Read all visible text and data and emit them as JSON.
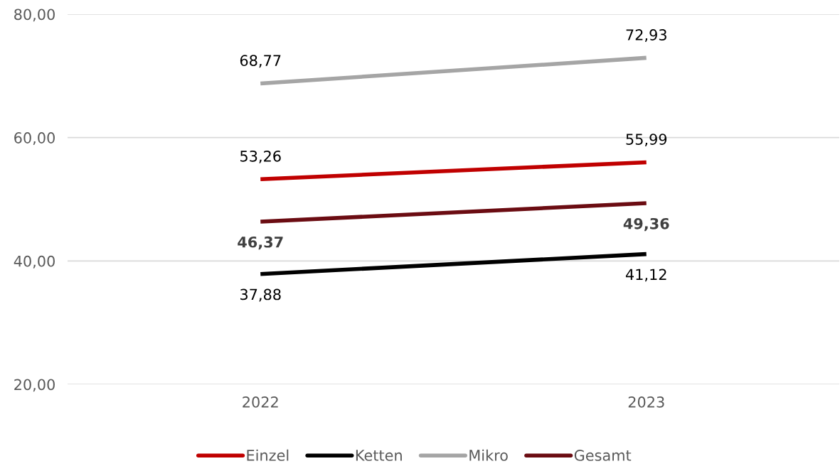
{
  "chart_data": {
    "type": "line",
    "categories": [
      "2022",
      "2023"
    ],
    "series": [
      {
        "name": "Einzel",
        "color": "#c00000",
        "values": [
          53.26,
          55.99
        ],
        "value_labels": [
          "53,26",
          "55,99"
        ]
      },
      {
        "name": "Ketten",
        "color": "#000000",
        "values": [
          37.88,
          41.12
        ],
        "value_labels": [
          "37,88",
          "41,12"
        ]
      },
      {
        "name": "Mikro",
        "color": "#a5a5a5",
        "values": [
          68.77,
          72.93
        ],
        "value_labels": [
          "68,77",
          "72,93"
        ]
      },
      {
        "name": "Gesamt",
        "color": "#6b0c12",
        "values": [
          46.37,
          49.36
        ],
        "value_labels": [
          "46,37",
          "49,36"
        ]
      }
    ],
    "ylim": [
      20,
      80
    ],
    "yticks": [
      {
        "value": 20,
        "label": "20,00"
      },
      {
        "value": 40,
        "label": "40,00"
      },
      {
        "value": 60,
        "label": "60,00"
      },
      {
        "value": 80,
        "label": "80,00"
      }
    ],
    "grid": "y",
    "legend": "bottom",
    "marker": "none",
    "line_style": "solid"
  }
}
